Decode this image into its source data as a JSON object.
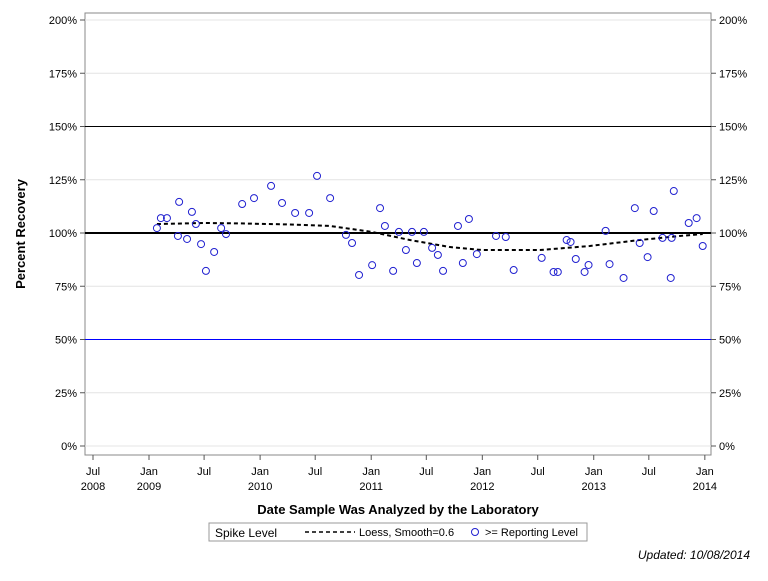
{
  "chart_data": {
    "type": "scatter",
    "title": "",
    "xlabel": "Date Sample Was Analyzed by the Laboratory",
    "ylabel": "Percent Recovery",
    "ylim": [
      0,
      200
    ],
    "xlim": [
      "2008-06-15",
      "2014-01-20"
    ],
    "y_ticks": [
      "0%",
      "25%",
      "50%",
      "75%",
      "100%",
      "125%",
      "150%",
      "175%",
      "200%"
    ],
    "x_ticks": [
      {
        "date": "2008-07-01",
        "line1": "Jul",
        "line2": "2008"
      },
      {
        "date": "2009-01-01",
        "line1": "Jan",
        "line2": "2009"
      },
      {
        "date": "2009-07-01",
        "line1": "Jul",
        "line2": ""
      },
      {
        "date": "2010-01-01",
        "line1": "Jan",
        "line2": "2010"
      },
      {
        "date": "2010-07-01",
        "line1": "Jul",
        "line2": ""
      },
      {
        "date": "2011-01-01",
        "line1": "Jan",
        "line2": "2011"
      },
      {
        "date": "2011-07-01",
        "line1": "Jul",
        "line2": ""
      },
      {
        "date": "2012-01-01",
        "line1": "Jan",
        "line2": "2012"
      },
      {
        "date": "2012-07-01",
        "line1": "Jul",
        "line2": ""
      },
      {
        "date": "2013-01-01",
        "line1": "Jan",
        "line2": "2013"
      },
      {
        "date": "2013-07-01",
        "line1": "Jul",
        "line2": ""
      },
      {
        "date": "2014-01-01",
        "line1": "Jan",
        "line2": "2014"
      }
    ],
    "grid": true,
    "reference_lines": [
      {
        "value": 150,
        "color": "#000000",
        "style": "thin"
      },
      {
        "value": 100,
        "color": "#000000",
        "style": "thick"
      },
      {
        "value": 50,
        "color": "#0000ff",
        "style": "thin"
      }
    ],
    "legend": {
      "placement": "bottom",
      "title": "Spike Level",
      "entries": [
        "Loess, Smooth=0.6",
        ">= Reporting Level"
      ]
    },
    "series": [
      {
        "name": ">= Reporting Level",
        "type": "scatter",
        "color": "#2020d0",
        "points": [
          [
            "2009-01-27",
            102.3
          ],
          [
            "2009-02-09",
            107.0
          ],
          [
            "2009-03-01",
            107.0
          ],
          [
            "2009-04-10",
            114.6
          ],
          [
            "2009-04-06",
            98.6
          ],
          [
            "2009-05-06",
            97.2
          ],
          [
            "2009-05-22",
            109.9
          ],
          [
            "2009-06-04",
            104.2
          ],
          [
            "2009-06-21",
            94.8
          ],
          [
            "2009-07-07",
            82.2
          ],
          [
            "2009-08-03",
            91.1
          ],
          [
            "2009-08-26",
            102.3
          ],
          [
            "2009-09-11",
            99.5
          ],
          [
            "2009-11-03",
            113.6
          ],
          [
            "2009-12-12",
            116.4
          ],
          [
            "2010-02-06",
            122.1
          ],
          [
            "2010-03-14",
            114.1
          ],
          [
            "2010-04-26",
            109.4
          ],
          [
            "2010-06-11",
            109.4
          ],
          [
            "2010-07-07",
            126.8
          ],
          [
            "2010-08-19",
            116.4
          ],
          [
            "2010-10-10",
            99.1
          ],
          [
            "2010-10-30",
            95.3
          ],
          [
            "2010-11-22",
            80.3
          ],
          [
            "2011-01-04",
            84.9
          ],
          [
            "2011-01-30",
            111.7
          ],
          [
            "2011-02-15",
            103.3
          ],
          [
            "2011-03-14",
            82.2
          ],
          [
            "2011-04-02",
            100.5
          ],
          [
            "2011-04-25",
            92.0
          ],
          [
            "2011-05-15",
            100.5
          ],
          [
            "2011-05-31",
            85.9
          ],
          [
            "2011-06-23",
            100.5
          ],
          [
            "2011-07-20",
            93.0
          ],
          [
            "2011-08-08",
            89.7
          ],
          [
            "2011-08-25",
            82.2
          ],
          [
            "2011-10-13",
            103.3
          ],
          [
            "2011-10-29",
            85.9
          ],
          [
            "2011-11-18",
            106.6
          ],
          [
            "2011-12-14",
            90.1
          ],
          [
            "2012-02-15",
            98.6
          ],
          [
            "2012-03-18",
            98.1
          ],
          [
            "2012-04-13",
            82.6
          ],
          [
            "2012-07-14",
            88.3
          ],
          [
            "2012-08-22",
            81.7
          ],
          [
            "2012-09-05",
            81.7
          ],
          [
            "2012-10-04",
            96.7
          ],
          [
            "2012-10-17",
            95.8
          ],
          [
            "2012-11-03",
            87.8
          ],
          [
            "2012-12-02",
            81.7
          ],
          [
            "2012-12-15",
            85.0
          ],
          [
            "2013-02-09",
            101.0
          ],
          [
            "2013-02-22",
            85.4
          ],
          [
            "2013-04-09",
            78.9
          ],
          [
            "2013-05-16",
            111.7
          ],
          [
            "2013-06-01",
            95.3
          ],
          [
            "2013-06-27",
            88.7
          ],
          [
            "2013-07-17",
            110.3
          ],
          [
            "2013-08-15",
            97.7
          ],
          [
            "2013-09-11",
            78.9
          ],
          [
            "2013-09-14",
            97.7
          ],
          [
            "2013-09-21",
            119.7
          ],
          [
            "2013-11-09",
            104.7
          ],
          [
            "2013-12-05",
            107.0
          ],
          [
            "2013-12-25",
            93.9
          ]
        ]
      },
      {
        "name": "Loess, Smooth=0.6",
        "type": "line",
        "color": "#000000",
        "points": [
          [
            "2009-01-27",
            104.2
          ],
          [
            "2009-07-03",
            104.7
          ],
          [
            "2009-10-27",
            104.5
          ],
          [
            "2010-04-09",
            104.0
          ],
          [
            "2010-08-19",
            103.3
          ],
          [
            "2011-01-04",
            100.5
          ],
          [
            "2011-05-08",
            96.7
          ],
          [
            "2011-09-17",
            93.4
          ],
          [
            "2011-12-31",
            92.0
          ],
          [
            "2012-07-08",
            92.0
          ],
          [
            "2012-12-19",
            93.9
          ],
          [
            "2013-06-01",
            96.7
          ],
          [
            "2013-10-10",
            98.6
          ],
          [
            "2013-12-25",
            99.5
          ]
        ]
      }
    ]
  },
  "footer": {
    "updated": "Updated: 10/08/2014"
  }
}
